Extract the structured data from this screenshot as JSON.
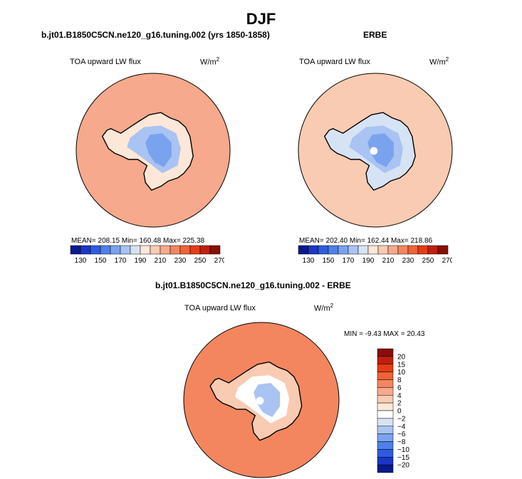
{
  "title": "DJF",
  "colors": {
    "coastline": "#000000",
    "scale_abs": [
      "#0a1a8c",
      "#1b36c4",
      "#2f5be0",
      "#4f7fe8",
      "#7aa3ef",
      "#a9c3f2",
      "#d6e3f5",
      "#fde7d8",
      "#f9cbb2",
      "#f6a98c",
      "#f3865f",
      "#f06238",
      "#e33d16",
      "#c01f0c",
      "#8a0d08"
    ],
    "scale_diff": [
      "#0a1a8c",
      "#1b36c4",
      "#2f5be0",
      "#4f7fe8",
      "#7aa3ef",
      "#a9c3f2",
      "#d6e3f5",
      "#ffffff",
      "#fde7d8",
      "#f9cbb2",
      "#f6a98c",
      "#f3865f",
      "#f06238",
      "#e33d16",
      "#c01f0c",
      "#8a0d08"
    ]
  },
  "chart_data": [
    {
      "type": "polar-contour-map",
      "title": "b.jt01.B1850C5CN.ne120_g16.tuning.002 (yrs 1850-1858)",
      "field_label": "TOA upward LW flux",
      "units": "W/m",
      "units_sup": "2",
      "stats": {
        "mean": 208.15,
        "min": 160.48,
        "max": 225.38
      },
      "stats_text": "MEAN= 208.15   Min= 160.48   Max= 225.38",
      "levels": [
        130,
        140,
        150,
        160,
        170,
        180,
        190,
        200,
        210,
        220,
        230,
        240,
        250,
        260,
        270
      ],
      "tick_labels": [
        "130",
        "150",
        "170",
        "190",
        "210",
        "230",
        "250",
        "270"
      ],
      "ocean_level": 213,
      "antarctica_levels": {
        "coast": 195,
        "interior": 170,
        "core": 163
      }
    },
    {
      "type": "polar-contour-map",
      "title": "ERBE",
      "field_label": "TOA upward LW flux",
      "units": "W/m",
      "units_sup": "2",
      "stats": {
        "mean": 202.4,
        "min": 162.44,
        "max": 218.86
      },
      "stats_text": "MEAN= 202.40   Min= 162.44   Max= 218.86",
      "levels": [
        130,
        140,
        150,
        160,
        170,
        180,
        190,
        200,
        210,
        220,
        230,
        240,
        250,
        260,
        270
      ],
      "tick_labels": [
        "130",
        "150",
        "170",
        "190",
        "210",
        "230",
        "250",
        "270"
      ],
      "ocean_level": 207,
      "antarctica_levels": {
        "coast": 188,
        "interior": 172,
        "core": 165
      },
      "has_polar_hole": true
    },
    {
      "type": "polar-contour-map",
      "title": "b.jt01.B1850C5CN.ne120_g16.tuning.002 - ERBE",
      "field_label": "TOA upward LW flux",
      "units": "W/m",
      "units_sup": "2",
      "stats": {
        "min": -9.43,
        "max": 20.43
      },
      "stats_text": "MIN =   -9.43  MAX =   20.43",
      "levels": [
        -20,
        -15,
        -10,
        -8,
        -6,
        -4,
        -2,
        0,
        2,
        4,
        6,
        8,
        10,
        15,
        20
      ],
      "tick_labels": [
        "20",
        "15",
        "10",
        "8",
        "6",
        "4",
        "2",
        "0",
        "−2",
        "−4",
        "−6",
        "−8",
        "−10",
        "−15",
        "−20"
      ],
      "ocean_level": 7,
      "antarctica_levels": {
        "coast": 2,
        "interior": -2,
        "core": -6
      },
      "has_polar_hole": true
    }
  ]
}
